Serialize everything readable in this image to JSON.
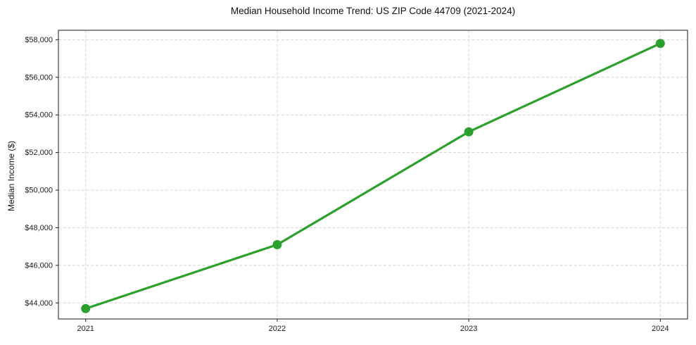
{
  "chart_data": {
    "type": "line",
    "title": "Median Household Income Trend: US ZIP Code 44709 (2021-2024)",
    "xlabel": "",
    "ylabel": "Median Income ($)",
    "categories": [
      "2021",
      "2022",
      "2023",
      "2024"
    ],
    "values": [
      43700,
      47100,
      53100,
      57800
    ],
    "value_unit": "USD",
    "ylim": [
      43150,
      58500
    ],
    "yticks": [
      44000,
      46000,
      48000,
      50000,
      52000,
      54000,
      56000,
      58000
    ],
    "ytick_labels": [
      "$44,000",
      "$46,000",
      "$48,000",
      "$50,000",
      "$52,000",
      "$54,000",
      "$56,000",
      "$58,000"
    ],
    "grid": "both",
    "grid_style": "dashed",
    "legend": "none",
    "style": {
      "line_color": "#2ca02c",
      "marker": "circle",
      "marker_color": "#2ca02c",
      "grid_color": "#d4d4d4",
      "axis_color": "#1a1a1a",
      "tick_text_color": "#1c1c1c",
      "background": "#ffffff"
    }
  }
}
